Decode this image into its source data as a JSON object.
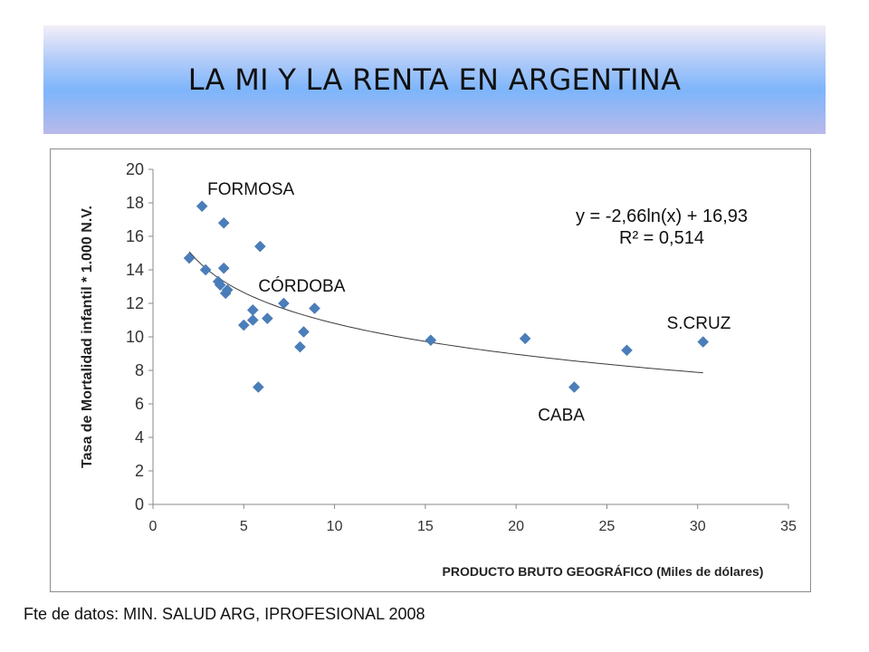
{
  "slide": {
    "title": "LA MI Y LA RENTA EN ARGENTINA",
    "source": "Fte de datos: MIN. SALUD ARG, IPROFESIONAL 2008"
  },
  "chart_data": {
    "type": "scatter",
    "title": "",
    "xlabel": "PRODUCTO BRUTO GEOGRÁFICO (Miles de dólares)",
    "ylabel": "Tasa de Mortalidad infantil * 1.000 N.V.",
    "xlim": [
      0,
      35
    ],
    "ylim": [
      0,
      20
    ],
    "x_ticks": [
      0,
      5,
      10,
      15,
      20,
      25,
      30,
      35
    ],
    "y_ticks": [
      0,
      2,
      4,
      6,
      8,
      10,
      12,
      14,
      16,
      18,
      20
    ],
    "grid": false,
    "legend": "none",
    "marker_color": "#4a7ebb",
    "trendline_color": "#3a3a3a",
    "points": [
      {
        "x": 2.0,
        "y": 14.7
      },
      {
        "x": 2.7,
        "y": 17.8
      },
      {
        "x": 2.9,
        "y": 14.0
      },
      {
        "x": 3.6,
        "y": 13.3
      },
      {
        "x": 3.7,
        "y": 13.1
      },
      {
        "x": 3.9,
        "y": 14.1
      },
      {
        "x": 3.9,
        "y": 16.8
      },
      {
        "x": 4.0,
        "y": 12.6
      },
      {
        "x": 4.1,
        "y": 12.8
      },
      {
        "x": 5.0,
        "y": 10.7
      },
      {
        "x": 5.5,
        "y": 11.0
      },
      {
        "x": 5.5,
        "y": 11.6
      },
      {
        "x": 5.8,
        "y": 7.0
      },
      {
        "x": 5.9,
        "y": 15.4
      },
      {
        "x": 6.3,
        "y": 11.1
      },
      {
        "x": 7.2,
        "y": 12.0
      },
      {
        "x": 8.1,
        "y": 9.4
      },
      {
        "x": 8.3,
        "y": 10.3
      },
      {
        "x": 8.9,
        "y": 11.7
      },
      {
        "x": 15.3,
        "y": 9.8
      },
      {
        "x": 20.5,
        "y": 9.9
      },
      {
        "x": 23.2,
        "y": 7.0
      },
      {
        "x": 26.1,
        "y": 9.2
      },
      {
        "x": 30.3,
        "y": 9.7
      }
    ],
    "trendline": {
      "type": "logarithmic",
      "a": -2.66,
      "b": 16.93,
      "x_range": [
        2.0,
        30.3
      ],
      "equation": "y = -2,66ln(x) + 16,93",
      "r2": "R² = 0,514"
    },
    "annotations": [
      {
        "text": "FORMOSA",
        "x": 3.0,
        "y": 18.5
      },
      {
        "text": "CÓRDOBA",
        "x": 5.8,
        "y": 12.7
      },
      {
        "text": "S.CRUZ",
        "x": 28.3,
        "y": 10.5
      },
      {
        "text": "CABA",
        "x": 21.2,
        "y": 5.0
      }
    ]
  }
}
